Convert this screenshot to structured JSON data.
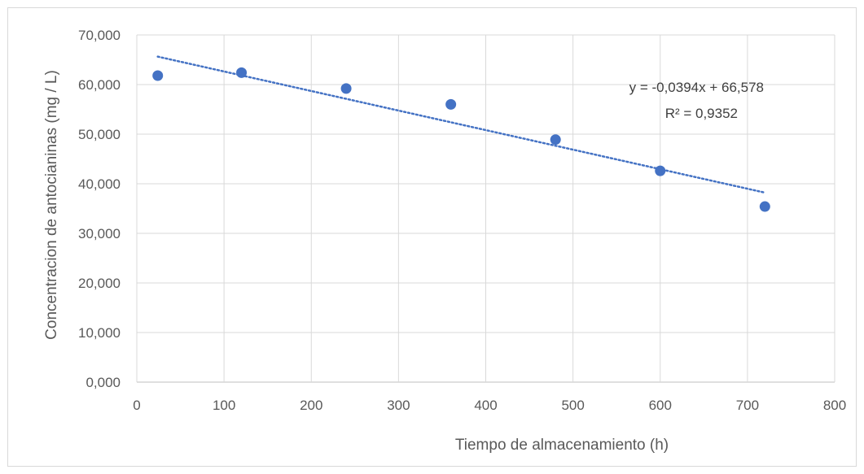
{
  "chart_data": {
    "type": "scatter",
    "title": "",
    "xlabel": "Tiempo  de almacenamiento (h)",
    "ylabel": "Concentracion de antocianinas (mg / L)",
    "xlim": [
      0,
      800
    ],
    "ylim": [
      0,
      70
    ],
    "x_ticks": [
      0,
      100,
      200,
      300,
      400,
      500,
      600,
      700,
      800
    ],
    "x_tick_labels": [
      "0",
      "100",
      "200",
      "300",
      "400",
      "500",
      "600",
      "700",
      "800"
    ],
    "y_ticks": [
      0,
      10,
      20,
      30,
      40,
      50,
      60,
      70
    ],
    "y_tick_labels": [
      "0,000",
      "10,000",
      "20,000",
      "30,000",
      "40,000",
      "50,000",
      "60,000",
      "70,000"
    ],
    "grid": true,
    "series": [
      {
        "x": [
          24,
          120,
          240,
          360,
          480,
          600,
          720
        ],
        "y": [
          61.8,
          62.4,
          59.2,
          56.0,
          48.9,
          42.6,
          35.4
        ],
        "color": "#4472c4"
      }
    ],
    "trendline": {
      "type": "linear",
      "slope": -0.0394,
      "intercept": 66.578,
      "x_range": [
        24,
        720
      ],
      "color": "#4472c4",
      "style": "dotted",
      "equation": "y = -0,0394x + 66,578",
      "r_squared": "R² = 0,9352"
    }
  }
}
